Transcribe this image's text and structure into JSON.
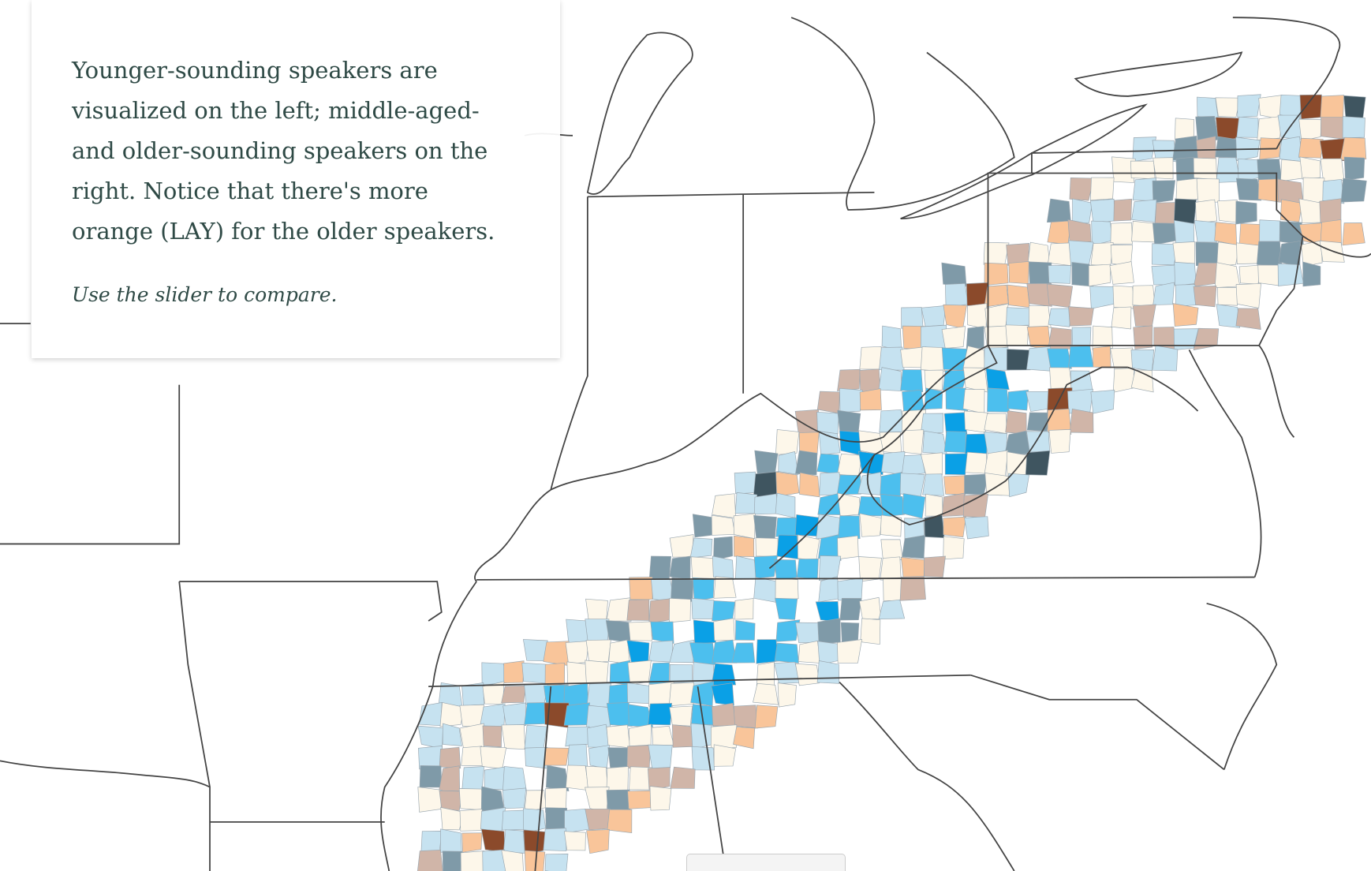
{
  "panel": {
    "body": "Younger-sounding speakers are visualized on the left; middle-aged- and older-sounding speakers on the right. Notice that there's more orange (LAY) for the older speakers.",
    "hint": "Use the slider to compare."
  }
}
